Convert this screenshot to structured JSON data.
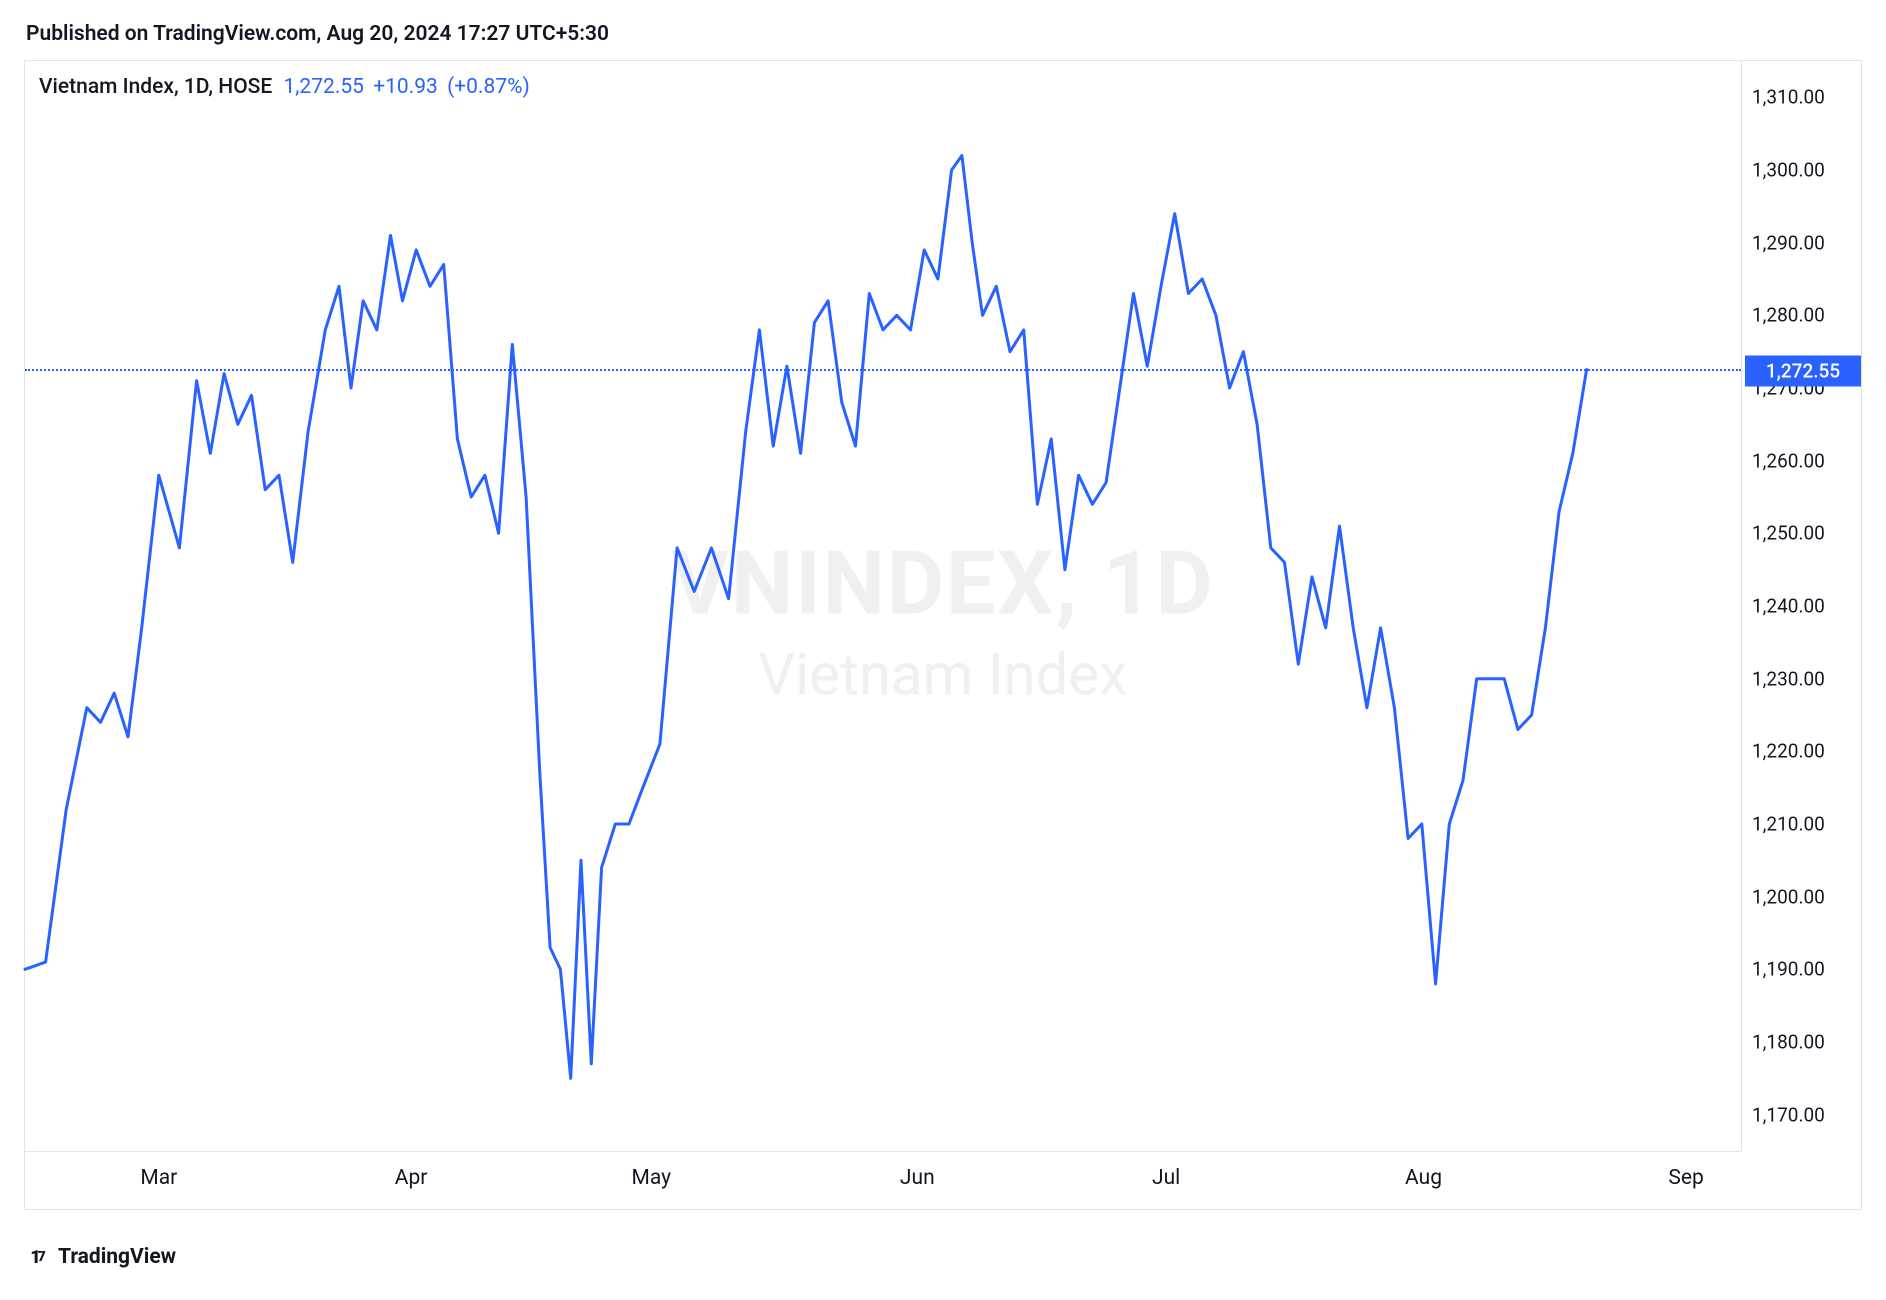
{
  "header": {
    "published_text": "Published on TradingView.com, Aug 20, 2024 17:27 UTC+5:30"
  },
  "legend": {
    "name": "Vietnam Index, 1D, HOSE",
    "price": "1,272.55",
    "change_abs": "+10.93",
    "change_pct": "(+0.87%)"
  },
  "watermark": {
    "line1": "VNINDEX, 1D",
    "line2": "Vietnam Index"
  },
  "footer": {
    "brand": "TradingView"
  },
  "chart": {
    "type": "line",
    "line_color": "#2962ff",
    "line_width": 3,
    "background_color": "#ffffff",
    "border_color": "#e0e3eb",
    "watermark_color": "#f0f0f0",
    "current_price_line_color": "#2962ff",
    "badge_bg": "#2962ff",
    "badge_text_color": "#ffffff",
    "ylim": [
      1165,
      1315
    ],
    "y_ticks": [
      1170,
      1180,
      1190,
      1200,
      1210,
      1220,
      1230,
      1240,
      1250,
      1260,
      1270,
      1280,
      1290,
      1300,
      1310
    ],
    "y_tick_labels": [
      "1,170.00",
      "1,180.00",
      "1,190.00",
      "1,200.00",
      "1,210.00",
      "1,220.00",
      "1,230.00",
      "1,240.00",
      "1,250.00",
      "1,260.00",
      "1,270.00",
      "1,280.00",
      "1,290.00",
      "1,300.00",
      "1,310.00"
    ],
    "x_ticks": [
      {
        "label": "Mar",
        "x": 0.078
      },
      {
        "label": "Apr",
        "x": 0.225
      },
      {
        "label": "May",
        "x": 0.365
      },
      {
        "label": "Jun",
        "x": 0.52
      },
      {
        "label": "Jul",
        "x": 0.665
      },
      {
        "label": "Aug",
        "x": 0.815
      },
      {
        "label": "Sep",
        "x": 0.968
      }
    ],
    "current_value": 1272.55,
    "current_value_label": "1,272.55",
    "series": [
      {
        "x": 0.0,
        "y": 1190
      },
      {
        "x": 0.012,
        "y": 1191
      },
      {
        "x": 0.024,
        "y": 1212
      },
      {
        "x": 0.036,
        "y": 1226
      },
      {
        "x": 0.044,
        "y": 1224
      },
      {
        "x": 0.052,
        "y": 1228
      },
      {
        "x": 0.06,
        "y": 1222
      },
      {
        "x": 0.068,
        "y": 1237
      },
      {
        "x": 0.078,
        "y": 1258
      },
      {
        "x": 0.09,
        "y": 1248
      },
      {
        "x": 0.1,
        "y": 1271
      },
      {
        "x": 0.108,
        "y": 1261
      },
      {
        "x": 0.116,
        "y": 1272
      },
      {
        "x": 0.124,
        "y": 1265
      },
      {
        "x": 0.132,
        "y": 1269
      },
      {
        "x": 0.14,
        "y": 1256
      },
      {
        "x": 0.148,
        "y": 1258
      },
      {
        "x": 0.156,
        "y": 1246
      },
      {
        "x": 0.165,
        "y": 1264
      },
      {
        "x": 0.175,
        "y": 1278
      },
      {
        "x": 0.183,
        "y": 1284
      },
      {
        "x": 0.19,
        "y": 1270
      },
      {
        "x": 0.197,
        "y": 1282
      },
      {
        "x": 0.205,
        "y": 1278
      },
      {
        "x": 0.213,
        "y": 1291
      },
      {
        "x": 0.22,
        "y": 1282
      },
      {
        "x": 0.228,
        "y": 1289
      },
      {
        "x": 0.236,
        "y": 1284
      },
      {
        "x": 0.244,
        "y": 1287
      },
      {
        "x": 0.252,
        "y": 1263
      },
      {
        "x": 0.26,
        "y": 1255
      },
      {
        "x": 0.268,
        "y": 1258
      },
      {
        "x": 0.276,
        "y": 1250
      },
      {
        "x": 0.284,
        "y": 1276
      },
      {
        "x": 0.292,
        "y": 1255
      },
      {
        "x": 0.3,
        "y": 1217
      },
      {
        "x": 0.306,
        "y": 1193
      },
      {
        "x": 0.312,
        "y": 1190
      },
      {
        "x": 0.318,
        "y": 1175
      },
      {
        "x": 0.324,
        "y": 1205
      },
      {
        "x": 0.33,
        "y": 1177
      },
      {
        "x": 0.336,
        "y": 1204
      },
      {
        "x": 0.344,
        "y": 1210
      },
      {
        "x": 0.352,
        "y": 1210
      },
      {
        "x": 0.36,
        "y": 1215
      },
      {
        "x": 0.37,
        "y": 1221
      },
      {
        "x": 0.38,
        "y": 1248
      },
      {
        "x": 0.39,
        "y": 1242
      },
      {
        "x": 0.4,
        "y": 1248
      },
      {
        "x": 0.41,
        "y": 1241
      },
      {
        "x": 0.42,
        "y": 1264
      },
      {
        "x": 0.428,
        "y": 1278
      },
      {
        "x": 0.436,
        "y": 1262
      },
      {
        "x": 0.444,
        "y": 1273
      },
      {
        "x": 0.452,
        "y": 1261
      },
      {
        "x": 0.46,
        "y": 1279
      },
      {
        "x": 0.468,
        "y": 1282
      },
      {
        "x": 0.476,
        "y": 1268
      },
      {
        "x": 0.484,
        "y": 1262
      },
      {
        "x": 0.492,
        "y": 1283
      },
      {
        "x": 0.5,
        "y": 1278
      },
      {
        "x": 0.508,
        "y": 1280
      },
      {
        "x": 0.516,
        "y": 1278
      },
      {
        "x": 0.524,
        "y": 1289
      },
      {
        "x": 0.532,
        "y": 1285
      },
      {
        "x": 0.54,
        "y": 1300
      },
      {
        "x": 0.546,
        "y": 1302
      },
      {
        "x": 0.552,
        "y": 1290
      },
      {
        "x": 0.558,
        "y": 1280
      },
      {
        "x": 0.566,
        "y": 1284
      },
      {
        "x": 0.574,
        "y": 1275
      },
      {
        "x": 0.582,
        "y": 1278
      },
      {
        "x": 0.59,
        "y": 1254
      },
      {
        "x": 0.598,
        "y": 1263
      },
      {
        "x": 0.606,
        "y": 1245
      },
      {
        "x": 0.614,
        "y": 1258
      },
      {
        "x": 0.622,
        "y": 1254
      },
      {
        "x": 0.63,
        "y": 1257
      },
      {
        "x": 0.638,
        "y": 1270
      },
      {
        "x": 0.646,
        "y": 1283
      },
      {
        "x": 0.654,
        "y": 1273
      },
      {
        "x": 0.662,
        "y": 1284
      },
      {
        "x": 0.67,
        "y": 1294
      },
      {
        "x": 0.678,
        "y": 1283
      },
      {
        "x": 0.686,
        "y": 1285
      },
      {
        "x": 0.694,
        "y": 1280
      },
      {
        "x": 0.702,
        "y": 1270
      },
      {
        "x": 0.71,
        "y": 1275
      },
      {
        "x": 0.718,
        "y": 1265
      },
      {
        "x": 0.726,
        "y": 1248
      },
      {
        "x": 0.734,
        "y": 1246
      },
      {
        "x": 0.742,
        "y": 1232
      },
      {
        "x": 0.75,
        "y": 1244
      },
      {
        "x": 0.758,
        "y": 1237
      },
      {
        "x": 0.766,
        "y": 1251
      },
      {
        "x": 0.774,
        "y": 1237
      },
      {
        "x": 0.782,
        "y": 1226
      },
      {
        "x": 0.79,
        "y": 1237
      },
      {
        "x": 0.798,
        "y": 1226
      },
      {
        "x": 0.806,
        "y": 1208
      },
      {
        "x": 0.814,
        "y": 1210
      },
      {
        "x": 0.822,
        "y": 1188
      },
      {
        "x": 0.83,
        "y": 1210
      },
      {
        "x": 0.838,
        "y": 1216
      },
      {
        "x": 0.846,
        "y": 1230
      },
      {
        "x": 0.854,
        "y": 1230
      },
      {
        "x": 0.862,
        "y": 1230
      },
      {
        "x": 0.87,
        "y": 1223
      },
      {
        "x": 0.878,
        "y": 1225
      },
      {
        "x": 0.886,
        "y": 1237
      },
      {
        "x": 0.894,
        "y": 1253
      },
      {
        "x": 0.902,
        "y": 1261
      },
      {
        "x": 0.91,
        "y": 1272.55
      }
    ]
  }
}
